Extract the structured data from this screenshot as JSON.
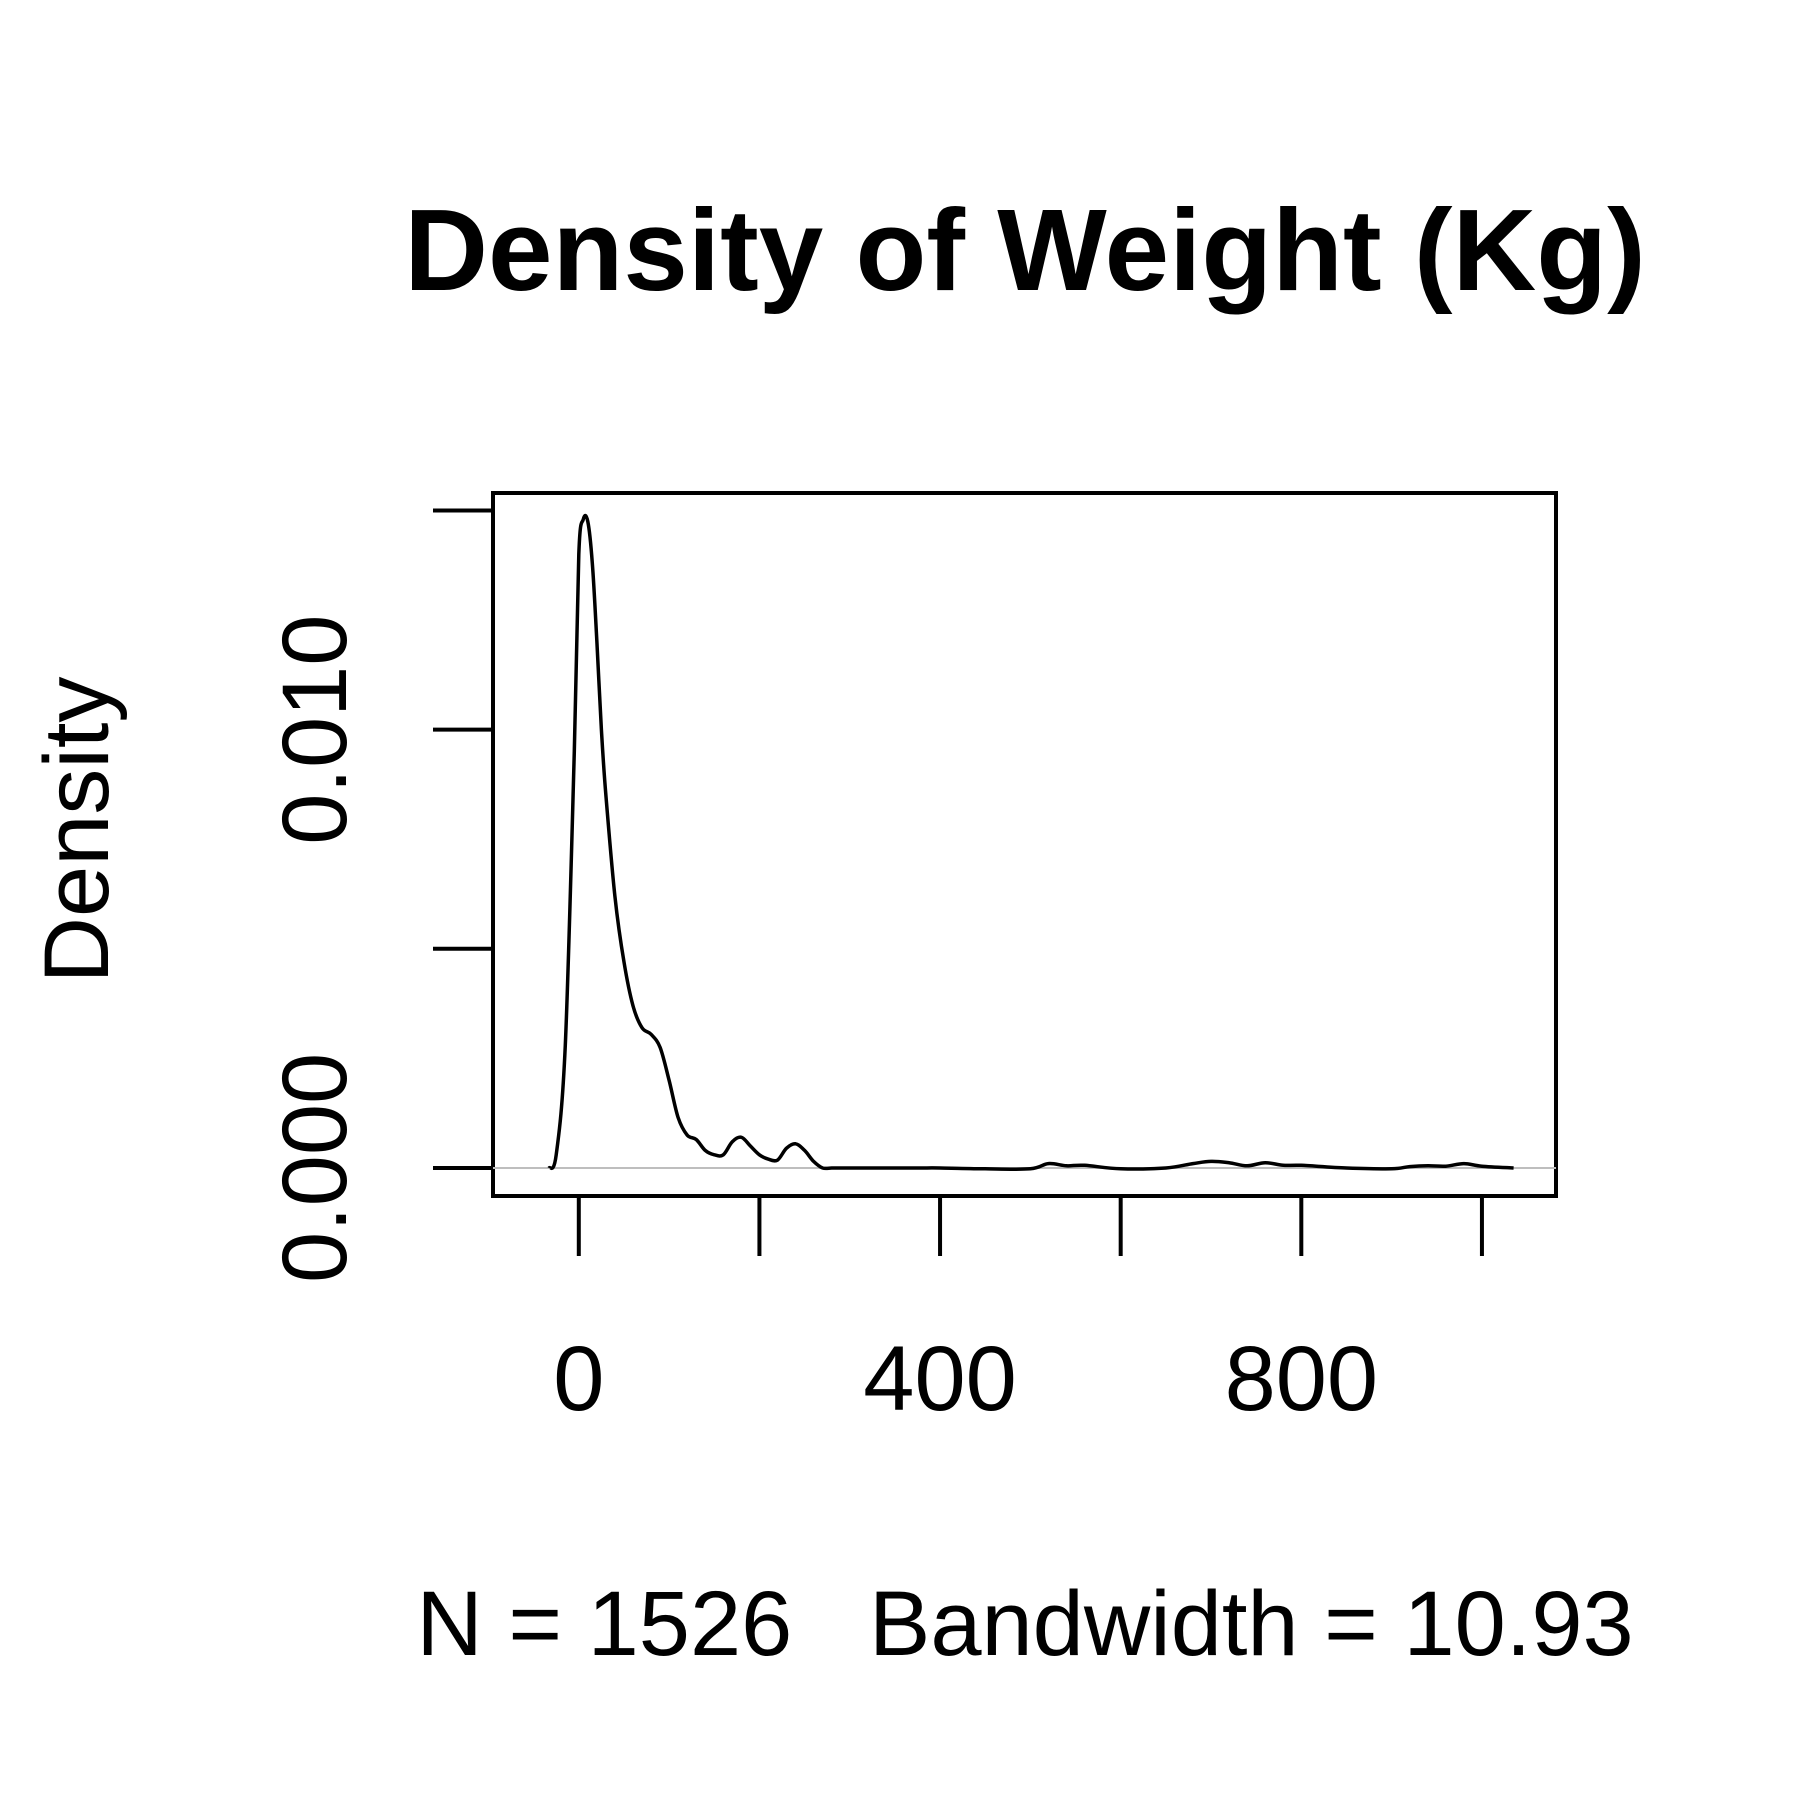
{
  "chart_data": {
    "type": "line",
    "title": "Density of Weight (Kg)",
    "xlabel": "N = 1526   Bandwidth = 10.93",
    "ylabel": "Density",
    "xlim": [
      -95,
      1082
    ],
    "ylim": [
      -0.00064,
      0.0154
    ],
    "x_ticks": [
      0,
      200,
      400,
      600,
      800,
      1000
    ],
    "x_tick_labels": [
      "0",
      "",
      "400",
      "",
      "800",
      ""
    ],
    "y_ticks": [
      0.0,
      0.005,
      0.01,
      0.015
    ],
    "y_tick_labels": [
      "0.000",
      "",
      "0.010",
      ""
    ],
    "zero_line": true,
    "grid": false,
    "series": [
      {
        "x": [
          -33,
          -25,
          -15,
          -5,
          0,
          5,
          10,
          15,
          20,
          25,
          30,
          40,
          50,
          60,
          70,
          80,
          90,
          100,
          110,
          120,
          130,
          140,
          150,
          160,
          170,
          180,
          190,
          200,
          210,
          220,
          230,
          240,
          250,
          260,
          270,
          280,
          290,
          300,
          310,
          320,
          340,
          360,
          380,
          400,
          450,
          500,
          520,
          540,
          560,
          600,
          650,
          680,
          700,
          720,
          740,
          760,
          780,
          800,
          850,
          900,
          920,
          940,
          960,
          980,
          1000,
          1035
        ],
        "y": [
          0.0,
          0.0003,
          0.0028,
          0.0095,
          0.014,
          0.0148,
          0.01475,
          0.0138,
          0.012,
          0.01,
          0.0085,
          0.0062,
          0.0047,
          0.0037,
          0.0032,
          0.00305,
          0.00275,
          0.002,
          0.00115,
          0.00075,
          0.00065,
          0.0004,
          0.0003,
          0.0003,
          0.0006,
          0.0007,
          0.0005,
          0.0003,
          0.0002,
          0.00018,
          0.00045,
          0.00055,
          0.0004,
          0.00015,
          0.0,
          0.0,
          0.0,
          0.0,
          0.0,
          0.0,
          0.0,
          0.0,
          0.0,
          0.0,
          -2e-05,
          -2e-05,
          0.0001,
          5e-05,
          6e-05,
          -2e-05,
          0.0,
          0.0001,
          0.00015,
          0.00012,
          5e-05,
          0.00012,
          6e-05,
          6e-05,
          0.0,
          -2e-05,
          3e-05,
          5e-05,
          4e-05,
          0.0001,
          4e-05,
          0.0
        ]
      }
    ]
  }
}
